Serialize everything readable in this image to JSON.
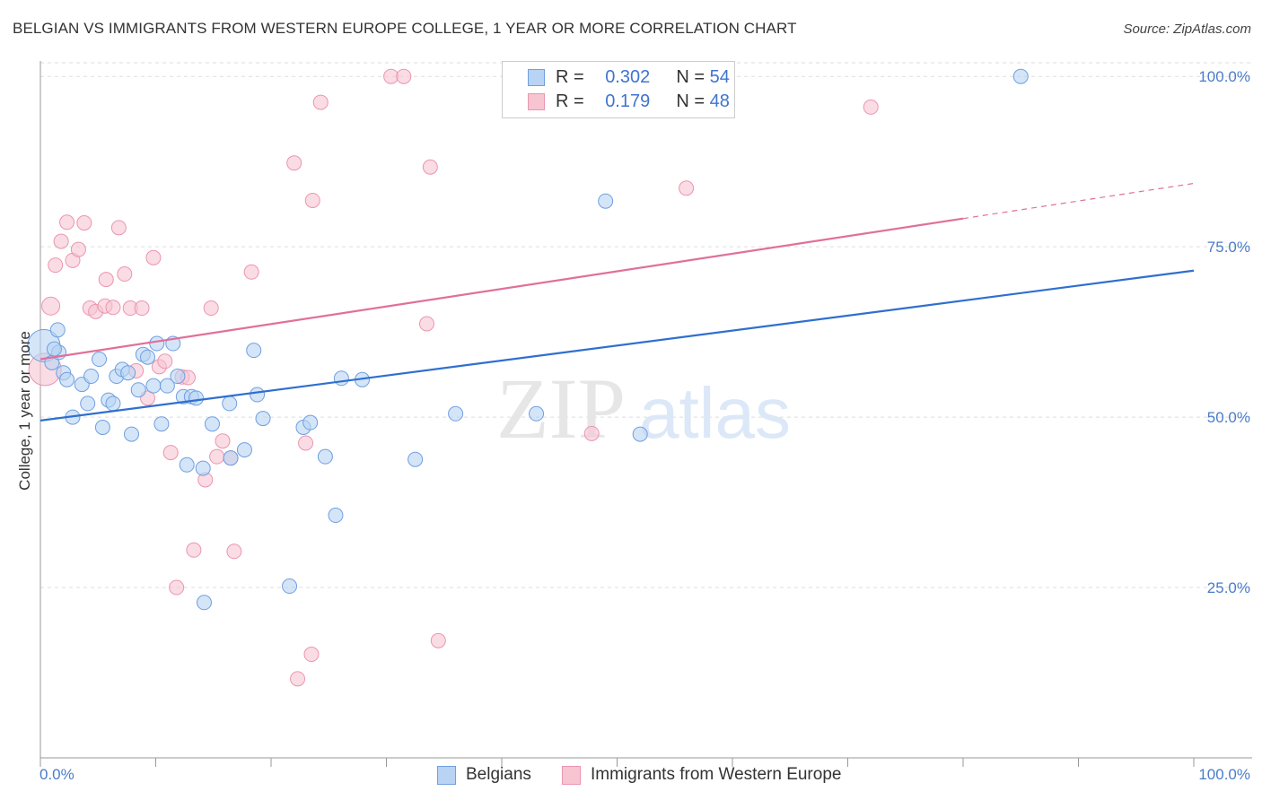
{
  "header": {
    "title": "BELGIAN VS IMMIGRANTS FROM WESTERN EUROPE COLLEGE, 1 YEAR OR MORE CORRELATION CHART",
    "source": "Source: ZipAtlas.com"
  },
  "legend": {
    "r_label": "R =",
    "n_label": "N =",
    "series": [
      {
        "name": "Belgians",
        "r": "0.302",
        "n": "54"
      },
      {
        "name": "Immigrants from Western Europe",
        "r": "0.179",
        "n": "48"
      }
    ]
  },
  "watermark": {
    "zip": "ZIP",
    "atlas": "atlas"
  },
  "colors": {
    "blue_fill": "#b8d3f3",
    "blue_stroke": "#6f9fe0",
    "blue_line": "#2f6fcf",
    "pink_fill": "#f7c4d2",
    "pink_stroke": "#ec95b0",
    "pink_line": "#e0709a",
    "tick_text": "#4a7cc9",
    "grid": "#dddddd"
  },
  "chart_data": {
    "type": "scatter",
    "title": "BELGIAN VS IMMIGRANTS FROM WESTERN EUROPE COLLEGE, 1 YEAR OR MORE CORRELATION CHART",
    "xlabel": "",
    "ylabel": "College, 1 year or more",
    "xlim": [
      0,
      100
    ],
    "ylim": [
      0,
      102
    ],
    "x_tick_labels": [
      "0.0%",
      "100.0%"
    ],
    "y_ticks": [
      25,
      50,
      75,
      100
    ],
    "y_tick_labels": [
      "25.0%",
      "50.0%",
      "75.0%",
      "100.0%"
    ],
    "grid": true,
    "series": [
      {
        "name": "Belgians",
        "color": "blue",
        "trend": {
          "x0": 0,
          "y0": 49.5,
          "x1": 100,
          "y1": 71.5
        },
        "points": [
          [
            0.3,
            60.5,
            18
          ],
          [
            1.0,
            58,
            8
          ],
          [
            1.5,
            62.8,
            8
          ],
          [
            1.6,
            59.5,
            8
          ],
          [
            2.0,
            56.5,
            8
          ],
          [
            2.3,
            55.5,
            8
          ],
          [
            2.8,
            50,
            8
          ],
          [
            3.6,
            54.8,
            8
          ],
          [
            4.1,
            52,
            8
          ],
          [
            4.4,
            56,
            8
          ],
          [
            5.1,
            58.5,
            8
          ],
          [
            5.4,
            48.5,
            8
          ],
          [
            5.9,
            52.5,
            8
          ],
          [
            6.3,
            52,
            8
          ],
          [
            6.6,
            56,
            8
          ],
          [
            7.1,
            57,
            8
          ],
          [
            7.6,
            56.5,
            8
          ],
          [
            7.9,
            47.5,
            8
          ],
          [
            8.5,
            54,
            8
          ],
          [
            8.9,
            59.2,
            8
          ],
          [
            9.3,
            58.8,
            8
          ],
          [
            9.8,
            54.6,
            8
          ],
          [
            10.1,
            60.8,
            8
          ],
          [
            10.5,
            49,
            8
          ],
          [
            11.0,
            54.6,
            8
          ],
          [
            11.5,
            60.8,
            8
          ],
          [
            11.9,
            56,
            8
          ],
          [
            12.4,
            53,
            8
          ],
          [
            12.7,
            43,
            8
          ],
          [
            13.1,
            53,
            8
          ],
          [
            13.5,
            52.8,
            8
          ],
          [
            14.1,
            42.5,
            8
          ],
          [
            14.2,
            22.8,
            8
          ],
          [
            14.9,
            49,
            8
          ],
          [
            16.4,
            52,
            8
          ],
          [
            16.5,
            44,
            8
          ],
          [
            17.7,
            45.2,
            8
          ],
          [
            18.5,
            59.8,
            8
          ],
          [
            18.8,
            53.3,
            8
          ],
          [
            19.3,
            49.8,
            8
          ],
          [
            21.6,
            25.2,
            8
          ],
          [
            22.8,
            48.5,
            8
          ],
          [
            23.4,
            49.2,
            8
          ],
          [
            24.7,
            44.2,
            8
          ],
          [
            25.6,
            35.6,
            8
          ],
          [
            26.1,
            55.7,
            8
          ],
          [
            27.9,
            55.5,
            8
          ],
          [
            32.5,
            43.8,
            8
          ],
          [
            36.0,
            50.5,
            8
          ],
          [
            43.0,
            50.5,
            8
          ],
          [
            49.0,
            81.7,
            8
          ],
          [
            52.0,
            47.5,
            8
          ],
          [
            85.0,
            100,
            8
          ],
          [
            1.2,
            60,
            8
          ]
        ]
      },
      {
        "name": "Immigrants from Western Europe",
        "color": "pink",
        "trend": {
          "x0": 0,
          "y0": 58.5,
          "x1": 100,
          "y1": 84.3,
          "solid_until": 80
        },
        "points": [
          [
            0.4,
            57,
            18
          ],
          [
            0.9,
            66.3,
            10
          ],
          [
            1.3,
            72.3,
            8
          ],
          [
            1.8,
            75.8,
            8
          ],
          [
            2.3,
            78.6,
            8
          ],
          [
            2.8,
            73,
            8
          ],
          [
            3.3,
            74.6,
            8
          ],
          [
            3.8,
            78.5,
            8
          ],
          [
            4.3,
            66,
            8
          ],
          [
            4.8,
            65.5,
            8
          ],
          [
            5.6,
            66.3,
            8
          ],
          [
            5.7,
            70.2,
            8
          ],
          [
            6.3,
            66.1,
            8
          ],
          [
            6.8,
            77.8,
            8
          ],
          [
            7.3,
            71,
            8
          ],
          [
            7.8,
            66,
            8
          ],
          [
            8.3,
            56.8,
            8
          ],
          [
            8.8,
            66,
            8
          ],
          [
            9.3,
            52.8,
            8
          ],
          [
            9.8,
            73.4,
            8
          ],
          [
            10.3,
            57.4,
            8
          ],
          [
            10.8,
            58.2,
            8
          ],
          [
            11.3,
            44.8,
            8
          ],
          [
            11.8,
            25,
            8
          ],
          [
            12.3,
            55.9,
            8
          ],
          [
            12.8,
            55.8,
            8
          ],
          [
            13.3,
            30.5,
            8
          ],
          [
            14.3,
            40.8,
            8
          ],
          [
            14.8,
            66,
            8
          ],
          [
            15.3,
            44.2,
            8
          ],
          [
            15.8,
            46.5,
            8
          ],
          [
            16.5,
            44,
            8
          ],
          [
            16.8,
            30.3,
            8
          ],
          [
            18.3,
            71.3,
            8
          ],
          [
            22.0,
            87.3,
            8
          ],
          [
            22.3,
            11.6,
            8
          ],
          [
            23.0,
            46.2,
            8
          ],
          [
            23.5,
            15.2,
            8
          ],
          [
            23.6,
            81.8,
            8
          ],
          [
            24.3,
            96.2,
            8
          ],
          [
            30.4,
            100,
            8
          ],
          [
            31.5,
            100,
            8
          ],
          [
            33.5,
            63.7,
            8
          ],
          [
            33.8,
            86.7,
            8
          ],
          [
            34.5,
            17.2,
            8
          ],
          [
            47.8,
            47.6,
            8
          ],
          [
            56.0,
            83.6,
            8
          ],
          [
            72.0,
            95.5,
            8
          ]
        ]
      }
    ]
  }
}
